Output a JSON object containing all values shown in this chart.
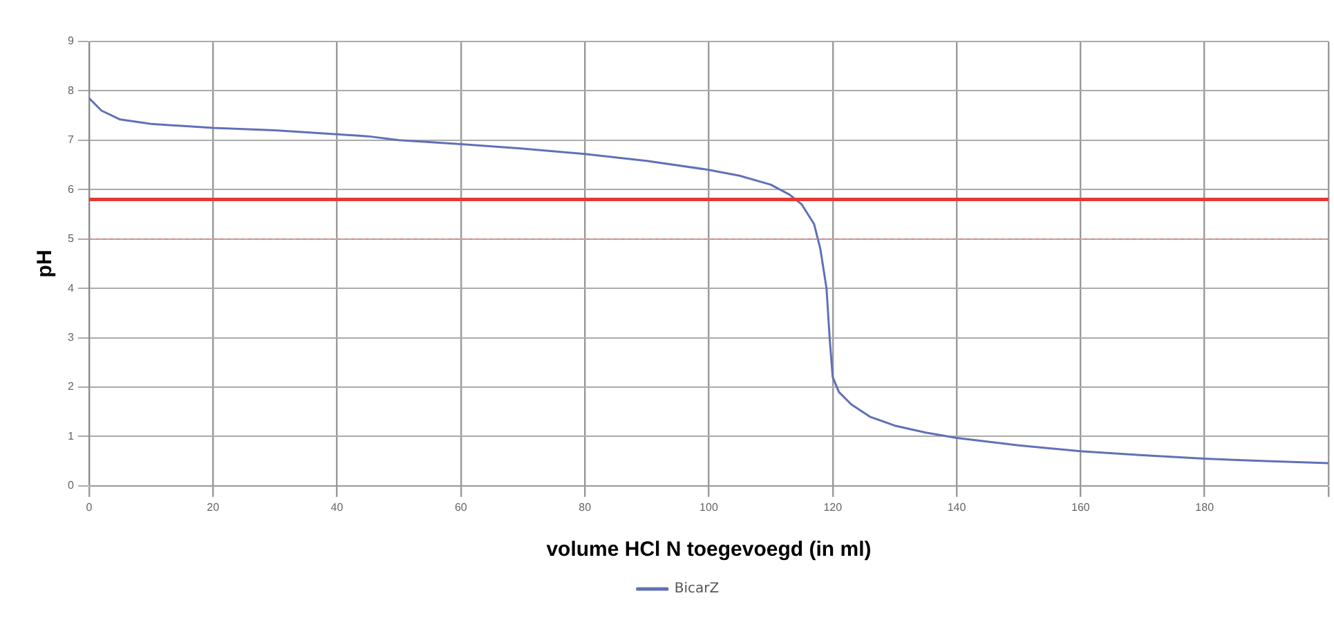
{
  "chart_data": {
    "type": "line",
    "xlabel": "volume HCl N toegevoegd (in ml)",
    "ylabel": "pH",
    "xlim": [
      0,
      200
    ],
    "xticks": [
      0,
      20,
      40,
      60,
      80,
      100,
      120,
      140,
      160,
      180,
      {
        "value": 200,
        "label": null
      }
    ],
    "ylim": [
      0,
      9
    ],
    "yticks": [
      0,
      1,
      2,
      3,
      4,
      5,
      6,
      7,
      8,
      9
    ],
    "grid": true,
    "legend": "bottom",
    "marker": "none",
    "line_style": "solid",
    "series": [
      {
        "name": "BicarZ",
        "color": "#6070b8",
        "x": [
          0,
          2,
          5,
          10,
          20,
          30,
          40,
          45,
          50,
          60,
          70,
          80,
          90,
          100,
          105,
          110,
          113,
          115,
          117,
          118,
          119,
          119.5,
          120,
          121,
          123,
          126,
          130,
          135,
          140,
          150,
          160,
          170,
          180,
          190,
          200
        ],
        "values": [
          7.85,
          7.6,
          7.42,
          7.33,
          7.25,
          7.2,
          7.12,
          7.08,
          7.0,
          6.92,
          6.83,
          6.72,
          6.58,
          6.4,
          6.28,
          6.1,
          5.9,
          5.7,
          5.3,
          4.8,
          4.0,
          3.0,
          2.2,
          1.9,
          1.65,
          1.4,
          1.22,
          1.08,
          0.97,
          0.82,
          0.7,
          0.62,
          0.55,
          0.5,
          0.46
        ]
      }
    ],
    "ref_lines": [
      {
        "axis": "y",
        "value": 5.8,
        "color": "#e53935",
        "line_style": "solid"
      },
      {
        "axis": "y",
        "value": 5,
        "color": "#f08080",
        "line_style": "dotted"
      }
    ]
  }
}
